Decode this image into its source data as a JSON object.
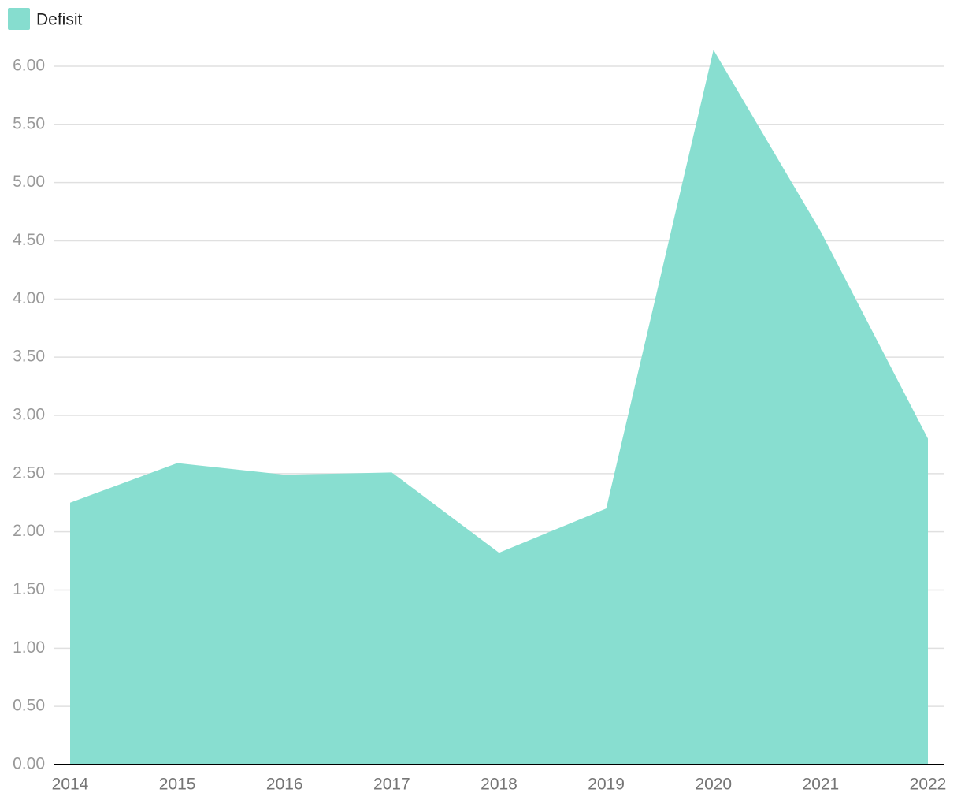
{
  "chart_data": {
    "type": "area",
    "categories": [
      "2014",
      "2015",
      "2016",
      "2017",
      "2018",
      "2019",
      "2020",
      "2021",
      "2022"
    ],
    "series": [
      {
        "name": "Defisit",
        "color": "#86ddcf",
        "values": [
          2.25,
          2.59,
          2.49,
          2.51,
          1.82,
          2.2,
          6.14,
          4.58,
          2.8
        ]
      }
    ],
    "ylim": [
      0,
      6.14
    ],
    "yticks": [
      {
        "value": 0,
        "label": "0.00"
      },
      {
        "value": 0.5,
        "label": "0.50"
      },
      {
        "value": 1,
        "label": "1.00"
      },
      {
        "value": 1.5,
        "label": "1.50"
      },
      {
        "value": 2,
        "label": "2.00"
      },
      {
        "value": 2.5,
        "label": "2.50"
      },
      {
        "value": 3,
        "label": "3.00"
      },
      {
        "value": 3.5,
        "label": "3.50"
      },
      {
        "value": 4,
        "label": "4.00"
      },
      {
        "value": 4.5,
        "label": "4.50"
      },
      {
        "value": 5,
        "label": "5.00"
      },
      {
        "value": 5.5,
        "label": "5.50"
      },
      {
        "value": 6,
        "label": "6.00"
      }
    ],
    "grid": true,
    "legend": "top-left"
  }
}
